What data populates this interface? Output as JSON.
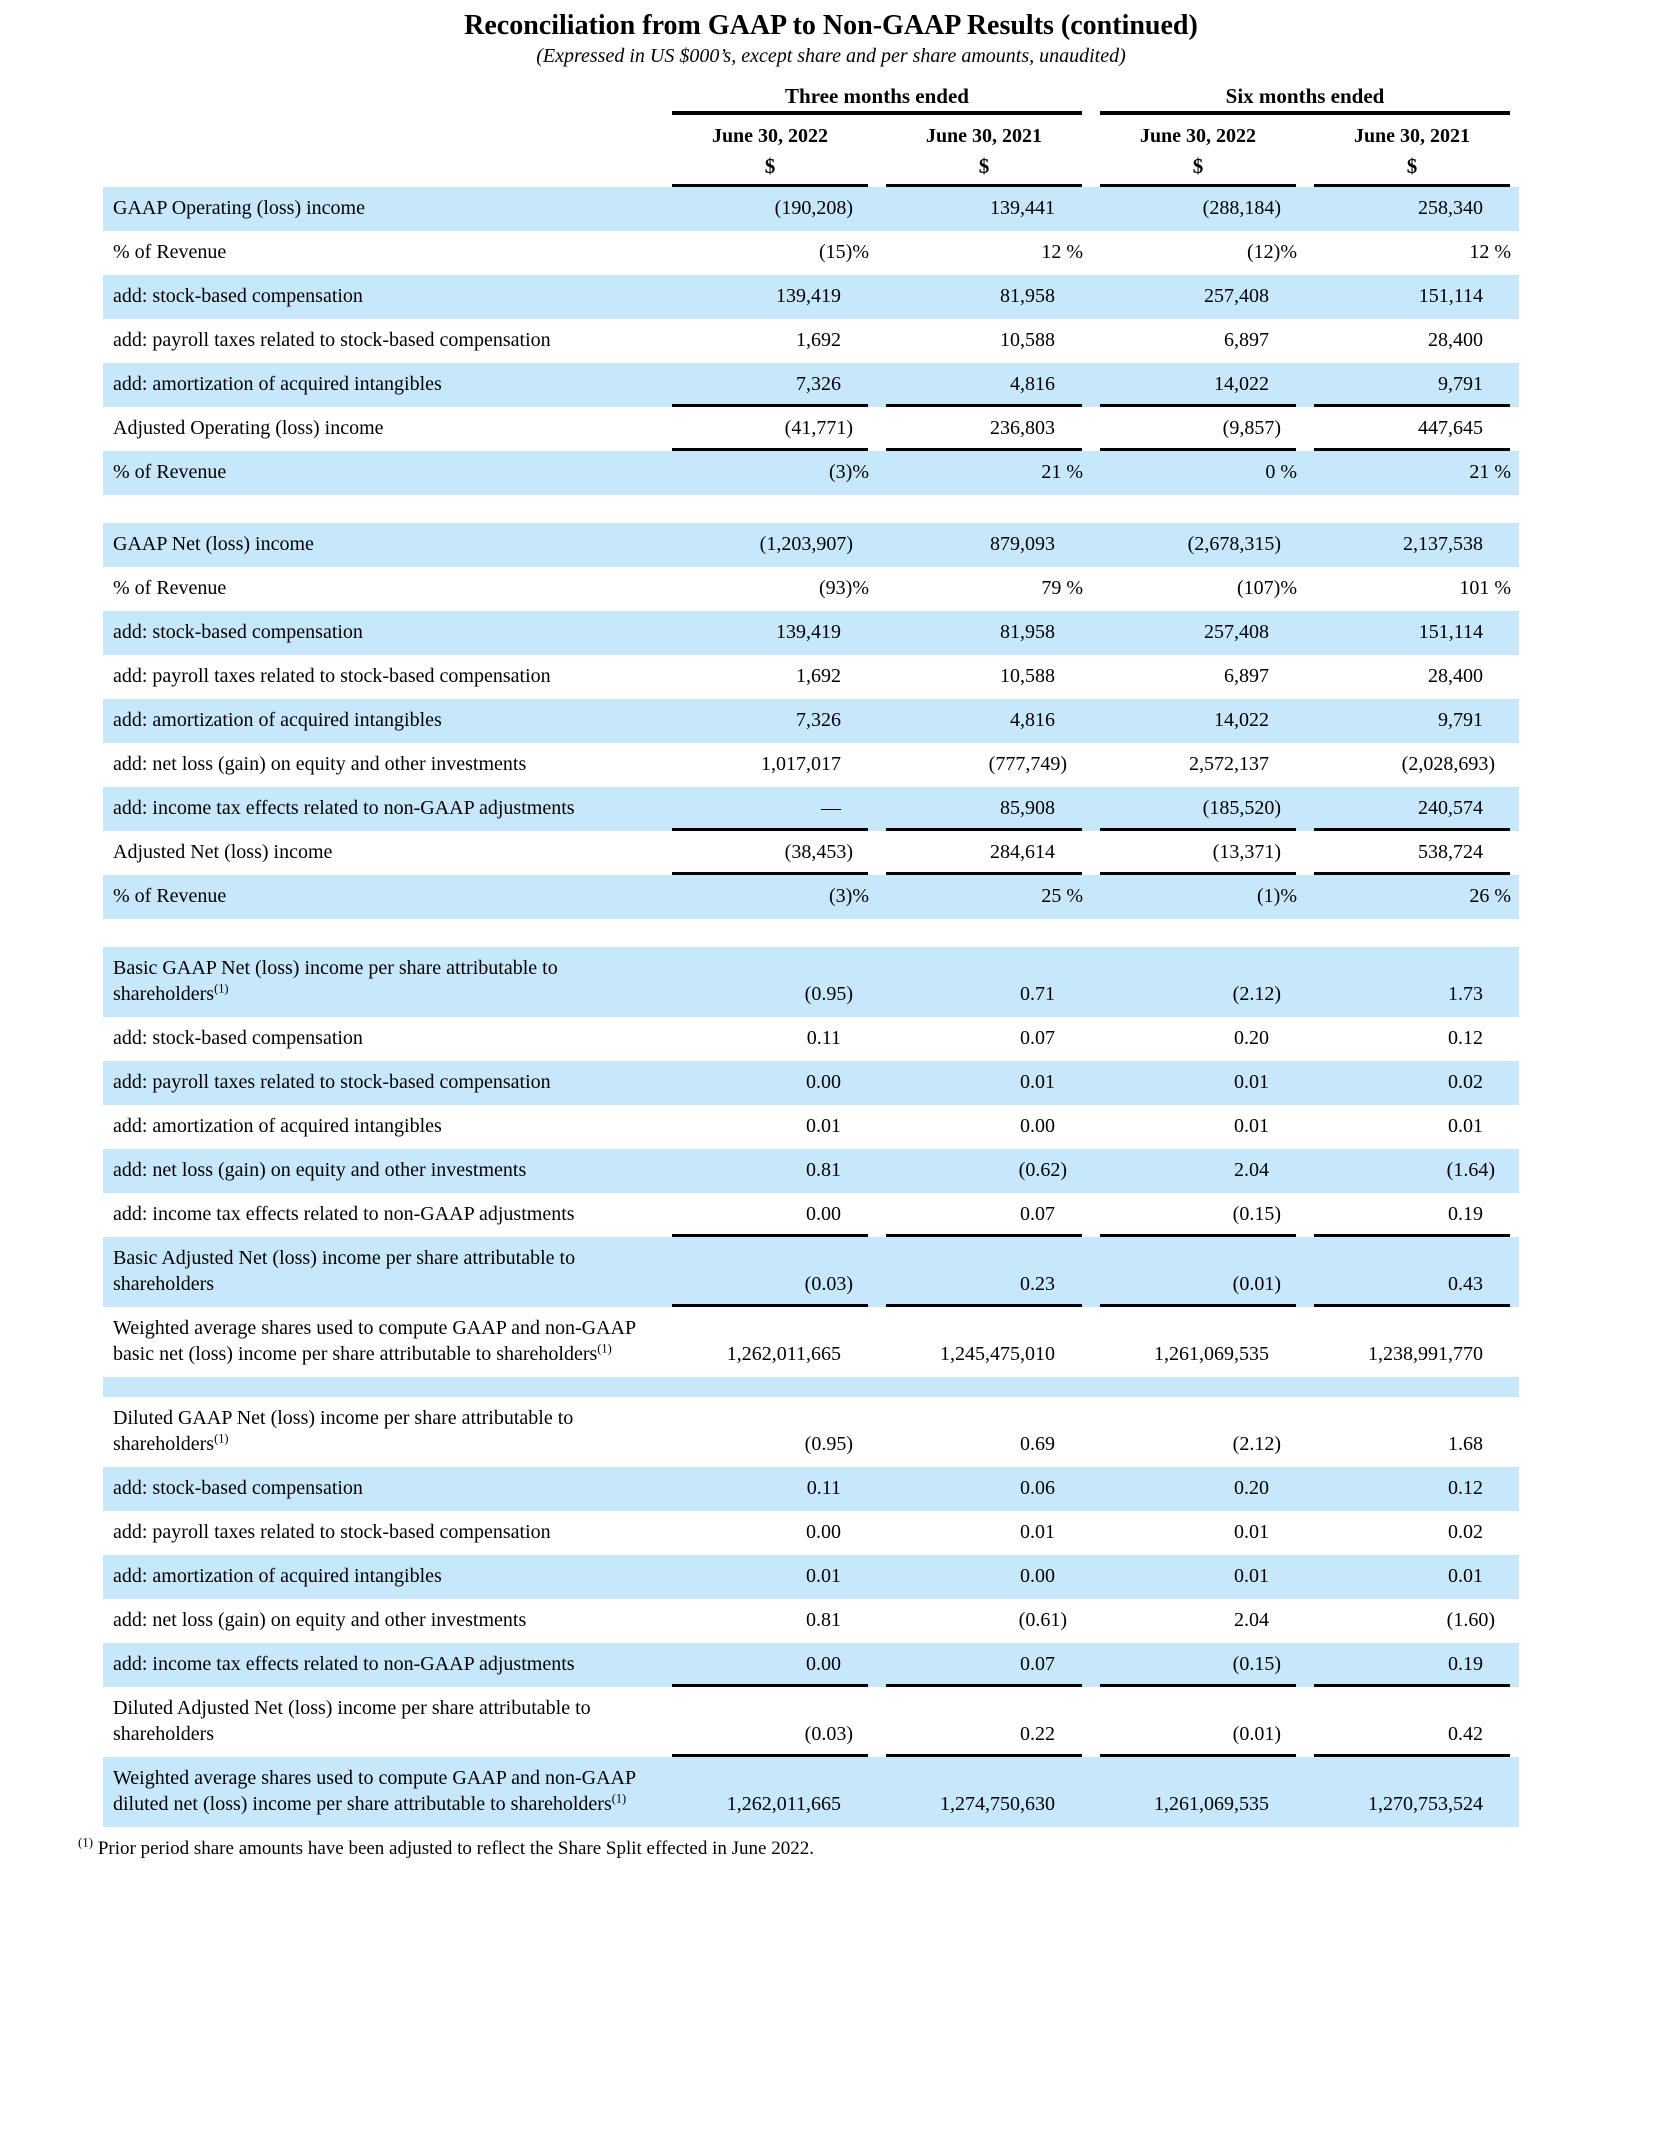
{
  "title": "Reconciliation from GAAP to Non-GAAP Results (continued)",
  "subtitle": "(Expressed in US $000’s, except share and per share amounts, unaudited)",
  "colors": {
    "row_highlight": "#c7e8fb",
    "rule": "#000000"
  },
  "header": {
    "groups": [
      {
        "label": "Three months ended"
      },
      {
        "label": "Six months ended"
      }
    ],
    "columns": [
      "June 30, 2022",
      "June 30, 2021",
      "June 30, 2022",
      "June 30, 2021"
    ],
    "currency_symbol": "$"
  },
  "rows": [
    {
      "type": "data",
      "label": "GAAP Operating (loss) income",
      "values": [
        "(190,208)",
        "139,441",
        "(288,184)",
        "258,340"
      ],
      "highlight": true
    },
    {
      "type": "data",
      "label": "% of Revenue",
      "values": [
        "(15)%",
        "12 %",
        "(12)%",
        "12 %"
      ],
      "highlight": false
    },
    {
      "type": "data",
      "label": "add: stock-based compensation",
      "values": [
        "139,419",
        "81,958",
        "257,408",
        "151,114"
      ],
      "highlight": true
    },
    {
      "type": "data",
      "label": "add: payroll taxes related to stock-based compensation",
      "values": [
        "1,692",
        "10,588",
        "6,897",
        "28,400"
      ],
      "highlight": false
    },
    {
      "type": "data",
      "label": "add: amortization of acquired intangibles",
      "values": [
        "7,326",
        "4,816",
        "14,022",
        "9,791"
      ],
      "highlight": true,
      "border_bottom": true
    },
    {
      "type": "data",
      "label": "Adjusted Operating (loss) income",
      "values": [
        "(41,771)",
        "236,803",
        "(9,857)",
        "447,645"
      ],
      "highlight": false,
      "border_bottom": true
    },
    {
      "type": "data",
      "label": "% of Revenue",
      "values": [
        "(3)%",
        "21 %",
        "0 %",
        "21 %"
      ],
      "highlight": true
    },
    {
      "type": "gap"
    },
    {
      "type": "data",
      "label": "GAAP Net (loss) income",
      "values": [
        "(1,203,907)",
        "879,093",
        "(2,678,315)",
        "2,137,538"
      ],
      "highlight": true
    },
    {
      "type": "data",
      "label": "% of Revenue",
      "values": [
        "(93)%",
        "79 %",
        "(107)%",
        "101 %"
      ],
      "highlight": false
    },
    {
      "type": "data",
      "label": "add: stock-based compensation",
      "values": [
        "139,419",
        "81,958",
        "257,408",
        "151,114"
      ],
      "highlight": true
    },
    {
      "type": "data",
      "label": "add: payroll taxes related to stock-based compensation",
      "values": [
        "1,692",
        "10,588",
        "6,897",
        "28,400"
      ],
      "highlight": false
    },
    {
      "type": "data",
      "label": "add: amortization of acquired intangibles",
      "values": [
        "7,326",
        "4,816",
        "14,022",
        "9,791"
      ],
      "highlight": true
    },
    {
      "type": "data",
      "label": "add: net loss (gain) on equity and other investments",
      "values": [
        "1,017,017",
        "(777,749)",
        "2,572,137",
        "(2,028,693)"
      ],
      "highlight": false
    },
    {
      "type": "data",
      "label": "add: income tax effects related to non-GAAP adjustments",
      "values": [
        "—",
        "85,908",
        "(185,520)",
        "240,574"
      ],
      "highlight": true,
      "border_bottom": true
    },
    {
      "type": "data",
      "label": "Adjusted Net (loss) income",
      "values": [
        "(38,453)",
        "284,614",
        "(13,371)",
        "538,724"
      ],
      "highlight": false,
      "border_bottom": true
    },
    {
      "type": "data",
      "label": "% of Revenue",
      "values": [
        "(3)%",
        "25 %",
        "(1)%",
        "26 %"
      ],
      "highlight": true
    },
    {
      "type": "gap"
    },
    {
      "type": "data",
      "label": "Basic GAAP Net (loss) income per share attributable to shareholders",
      "sup": "(1)",
      "values": [
        "(0.95)",
        "0.71",
        "(2.12)",
        "1.73"
      ],
      "highlight": true
    },
    {
      "type": "data",
      "label": "add: stock-based compensation",
      "values": [
        "0.11",
        "0.07",
        "0.20",
        "0.12"
      ],
      "highlight": false
    },
    {
      "type": "data",
      "label": "add: payroll taxes related to stock-based compensation",
      "values": [
        "0.00",
        "0.01",
        "0.01",
        "0.02"
      ],
      "highlight": true
    },
    {
      "type": "data",
      "label": "add: amortization of acquired intangibles",
      "values": [
        "0.01",
        "0.00",
        "0.01",
        "0.01"
      ],
      "highlight": false
    },
    {
      "type": "data",
      "label": "add: net loss (gain) on equity and other investments",
      "values": [
        "0.81",
        "(0.62)",
        "2.04",
        "(1.64)"
      ],
      "highlight": true
    },
    {
      "type": "data",
      "label": "add: income tax effects related to non-GAAP adjustments",
      "values": [
        "0.00",
        "0.07",
        "(0.15)",
        "0.19"
      ],
      "highlight": false,
      "border_bottom": true
    },
    {
      "type": "data",
      "label": "Basic Adjusted Net (loss) income per share attributable to shareholders",
      "values": [
        "(0.03)",
        "0.23",
        "(0.01)",
        "0.43"
      ],
      "highlight": true,
      "border_bottom": true
    },
    {
      "type": "data",
      "label": "Weighted average shares used to compute GAAP and non-GAAP basic net (loss) income per share attributable to shareholders",
      "sup": "(1)",
      "values": [
        "1,262,011,665",
        "1,245,475,010",
        "1,261,069,535",
        "1,238,991,770"
      ],
      "highlight": false
    },
    {
      "type": "spacer",
      "highlight": true
    },
    {
      "type": "data",
      "label": "Diluted GAAP Net (loss) income per share attributable to shareholders",
      "sup": "(1)",
      "values": [
        "(0.95)",
        "0.69",
        "(2.12)",
        "1.68"
      ],
      "highlight": false
    },
    {
      "type": "data",
      "label": "add: stock-based compensation",
      "values": [
        "0.11",
        "0.06",
        "0.20",
        "0.12"
      ],
      "highlight": true
    },
    {
      "type": "data",
      "label": "add: payroll taxes related to stock-based compensation",
      "values": [
        "0.00",
        "0.01",
        "0.01",
        "0.02"
      ],
      "highlight": false
    },
    {
      "type": "data",
      "label": "add: amortization of acquired intangibles",
      "values": [
        "0.01",
        "0.00",
        "0.01",
        "0.01"
      ],
      "highlight": true
    },
    {
      "type": "data",
      "label": "add: net loss (gain) on equity and other investments",
      "values": [
        "0.81",
        "(0.61)",
        "2.04",
        "(1.60)"
      ],
      "highlight": false
    },
    {
      "type": "data",
      "label": "add: income tax effects related to non-GAAP adjustments",
      "values": [
        "0.00",
        "0.07",
        "(0.15)",
        "0.19"
      ],
      "highlight": true,
      "border_bottom": true
    },
    {
      "type": "data",
      "label": "Diluted Adjusted Net (loss) income per share attributable to shareholders",
      "values": [
        "(0.03)",
        "0.22",
        "(0.01)",
        "0.42"
      ],
      "highlight": false,
      "border_bottom": true
    },
    {
      "type": "data",
      "label": "Weighted average shares used to compute GAAP and non-GAAP diluted net (loss) income per share attributable to shareholders",
      "sup": "(1)",
      "values": [
        "1,262,011,665",
        "1,274,750,630",
        "1,261,069,535",
        "1,270,753,524"
      ],
      "highlight": true
    }
  ],
  "footnote": {
    "marker": "(1)",
    "text": "Prior period share amounts have been adjusted to reflect the Share Split effected in June 2022."
  }
}
